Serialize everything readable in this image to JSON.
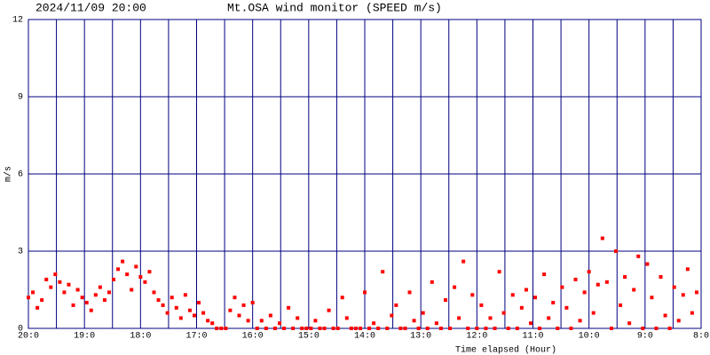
{
  "chart_data": {
    "type": "scatter",
    "date_label": "2024/11/09 20:00",
    "title": "Mt.OSA wind monitor (SPEED m/s)",
    "x_label": "Time elapsed (Hour)",
    "y_label": "m/s",
    "xlim": [
      0,
      12
    ],
    "ylim": [
      0,
      12
    ],
    "xticks": [
      {
        "value": 0,
        "label": "20:0"
      },
      {
        "value": 1,
        "label": "19:0"
      },
      {
        "value": 2,
        "label": "18:0"
      },
      {
        "value": 3,
        "label": "17:0"
      },
      {
        "value": 4,
        "label": "16:0"
      },
      {
        "value": 5,
        "label": "15:0"
      },
      {
        "value": 6,
        "label": "14:0"
      },
      {
        "value": 7,
        "label": "13:0"
      },
      {
        "value": 8,
        "label": "12:0"
      },
      {
        "value": 9,
        "label": "11:0"
      },
      {
        "value": 10,
        "label": "10:0"
      },
      {
        "value": 11,
        "label": "9:0"
      },
      {
        "value": 12,
        "label": "8:0"
      }
    ],
    "yticks": [
      0,
      3,
      6,
      9,
      12
    ],
    "grid": true,
    "minor_x_grid": true,
    "grid_color": "#000080",
    "color": "#ff0000",
    "x": [
      0,
      0.08,
      0.16,
      0.24,
      0.32,
      0.4,
      0.48,
      0.56,
      0.64,
      0.72,
      0.8,
      0.88,
      0.96,
      1.04,
      1.12,
      1.2,
      1.28,
      1.36,
      1.44,
      1.52,
      1.6,
      1.68,
      1.76,
      1.84,
      1.92,
      2,
      2.08,
      2.16,
      2.24,
      2.32,
      2.4,
      2.48,
      2.56,
      2.64,
      2.72,
      2.8,
      2.88,
      2.96,
      3.04,
      3.12,
      3.2,
      3.28,
      3.36,
      3.44,
      3.52,
      3.6,
      3.68,
      3.76,
      3.84,
      3.92,
      4,
      4.08,
      4.16,
      4.24,
      4.32,
      4.4,
      4.48,
      4.56,
      4.64,
      4.72,
      4.8,
      4.88,
      4.96,
      5.04,
      5.12,
      5.2,
      5.28,
      5.36,
      5.44,
      5.52,
      5.6,
      5.68,
      5.76,
      5.84,
      5.92,
      6,
      6.08,
      6.16,
      6.24,
      6.32,
      6.4,
      6.48,
      6.56,
      6.64,
      6.72,
      6.8,
      6.88,
      6.96,
      7.04,
      7.12,
      7.2,
      7.28,
      7.36,
      7.44,
      7.52,
      7.6,
      7.68,
      7.76,
      7.84,
      7.92,
      8,
      8.08,
      8.16,
      8.24,
      8.32,
      8.4,
      8.48,
      8.56,
      8.64,
      8.72,
      8.8,
      8.88,
      8.96,
      9.04,
      9.12,
      9.2,
      9.28,
      9.36,
      9.44,
      9.52,
      9.6,
      9.68,
      9.76,
      9.84,
      9.92,
      10,
      10.08,
      10.16,
      10.24,
      10.32,
      10.4,
      10.48,
      10.56,
      10.64,
      10.72,
      10.8,
      10.88,
      10.96,
      11.04,
      11.12,
      11.2,
      11.28,
      11.36,
      11.44,
      11.52,
      11.6,
      11.68,
      11.76,
      11.84,
      11.92
    ],
    "values": [
      1.2,
      1.4,
      0.8,
      1.1,
      1.9,
      1.6,
      2.1,
      1.8,
      1.4,
      1.7,
      0.9,
      1.5,
      1.2,
      1.0,
      0.7,
      1.3,
      1.6,
      1.1,
      1.4,
      1.9,
      2.3,
      2.6,
      2.1,
      1.5,
      2.4,
      2.0,
      1.8,
      2.2,
      1.4,
      1.1,
      0.9,
      0.6,
      1.2,
      0.8,
      0.4,
      1.3,
      0.7,
      0.5,
      1.0,
      0.6,
      0.3,
      0.2,
      0.0,
      0.0,
      0.0,
      0.7,
      1.2,
      0.5,
      0.9,
      0.3,
      1.0,
      0.0,
      0.3,
      0.0,
      0.5,
      0.0,
      0.2,
      0.0,
      0.8,
      0.0,
      0.4,
      0.0,
      0.0,
      0.0,
      0.3,
      0.0,
      0.0,
      0.7,
      0.0,
      0.0,
      1.2,
      0.4,
      0.0,
      0.0,
      0.0,
      1.4,
      0.0,
      0.2,
      0.0,
      2.2,
      0.0,
      0.5,
      0.9,
      0.0,
      0.0,
      1.4,
      0.3,
      0.0,
      0.6,
      0.0,
      1.8,
      0.2,
      0.0,
      1.1,
      0.0,
      1.6,
      0.4,
      2.6,
      0.0,
      1.3,
      0.0,
      0.9,
      0.0,
      0.4,
      0.0,
      2.2,
      0.6,
      0.0,
      1.3,
      0.0,
      0.8,
      1.5,
      0.2,
      1.2,
      0.0,
      2.1,
      0.4,
      1.0,
      0.0,
      1.6,
      0.8,
      0.0,
      1.9,
      0.3,
      1.4,
      2.2,
      0.6,
      1.7,
      3.5,
      1.8,
      0.0,
      3.0,
      0.9,
      2.0,
      0.2,
      1.5,
      2.8,
      0.0,
      2.5,
      1.2,
      0.0,
      2.0,
      0.5,
      0.0,
      1.6,
      0.3,
      1.3,
      2.3,
      0.6,
      1.4
    ]
  }
}
